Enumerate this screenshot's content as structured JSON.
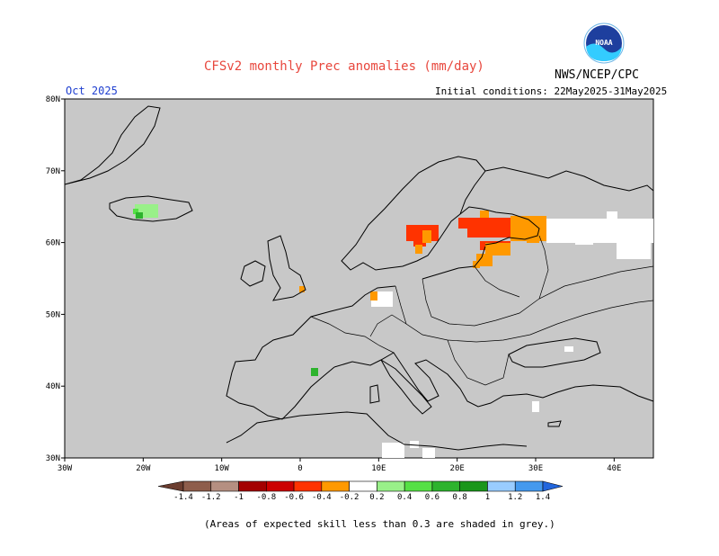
{
  "title": "CFSv2 monthly Prec anomalies (mm/day)",
  "org": "NWS/NCEP/CPC",
  "logo_text": "NOAA",
  "month": "Oct 2025",
  "initial_conditions": "Initial conditions: 22May2025-31May2025",
  "footnote": "(Areas of expected skill less than 0.3 are shaded in grey.)",
  "map": {
    "background": "#c8c8c8",
    "lon_labels": [
      "30W",
      "20W",
      "10W",
      "0",
      "10E",
      "20E",
      "30E",
      "40E"
    ],
    "lat_labels": [
      "30N",
      "40N",
      "50N",
      "60N",
      "70N",
      "80N"
    ]
  },
  "colorbar": {
    "labels": [
      "-1.4",
      "-1.2",
      "-1",
      "-0.8",
      "-0.6",
      "-0.4",
      "-0.2",
      "0.2",
      "0.4",
      "0.6",
      "0.8",
      "1",
      "1.2",
      "1.4"
    ],
    "colors": [
      "#6b3d2f",
      "#8e5d4b",
      "#b58f81",
      "#a40000",
      "#cc0000",
      "#ff3300",
      "#ff9900",
      "#ffffff",
      "#99f089",
      "#55e045",
      "#2db32d",
      "#1a961a",
      "#99ccff",
      "#4499ee",
      "#2266dd"
    ]
  },
  "anomalies": [
    {
      "name": "iceland-positive",
      "color": "#99f089"
    },
    {
      "name": "iceland-positive-dark",
      "color": "#2db32d"
    },
    {
      "name": "sweden-negative",
      "color": "#ff3300"
    },
    {
      "name": "finland-negative",
      "color": "#ff9900"
    },
    {
      "name": "spain-positive",
      "color": "#2db32d"
    }
  ]
}
